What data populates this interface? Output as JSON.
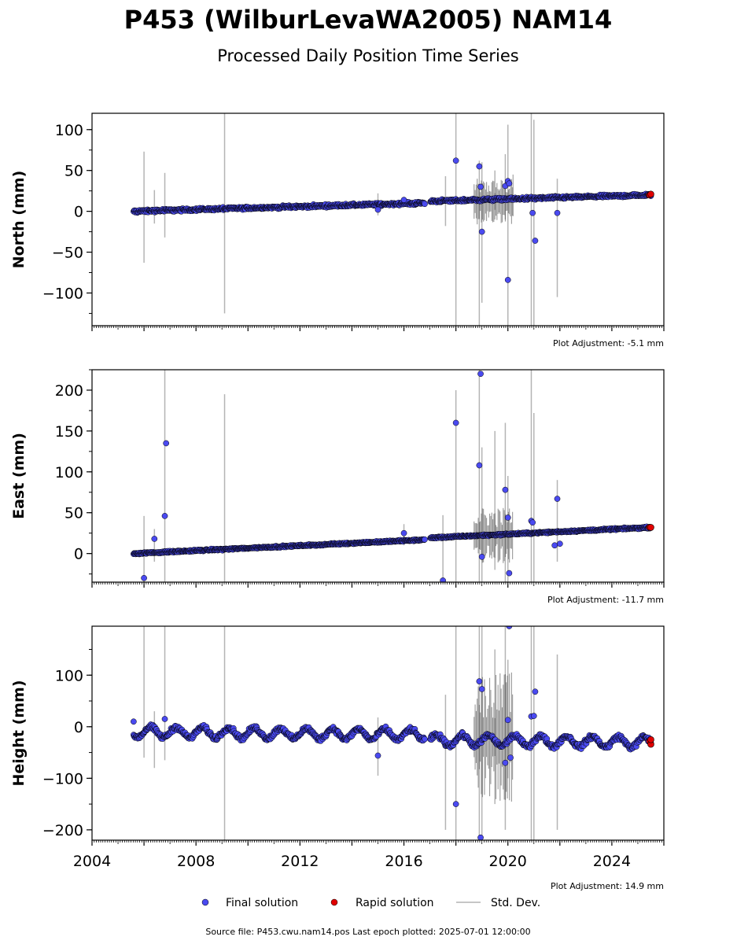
{
  "header": {
    "title": "P453 (WilburLevaWA2005) NAM14",
    "subtitle": "Processed Daily Position Time Series"
  },
  "footer": {
    "source": "Source file: P453.cwu.nam14.pos  Last epoch plotted: 2025-07-01 12:00:00"
  },
  "legend": {
    "final": "Final solution",
    "rapid": "Rapid solution",
    "std": "Std. Dev."
  },
  "colors": {
    "final_fill": "#4a4af0",
    "final_edge": "#000000",
    "rapid_fill": "#e00000",
    "std_line": "#b4b4b4"
  },
  "chart_data": [
    {
      "type": "scatter",
      "ylabel": "North (mm)",
      "adjustment": "Plot Adjustment: -5.1 mm",
      "xlim": [
        2004.0,
        2026.0
      ],
      "ylim": [
        -140,
        120
      ],
      "yticks": [
        100,
        50,
        0,
        -50,
        -100
      ],
      "ytick_labels": [
        "100",
        "50",
        "0",
        "−50",
        "−100"
      ],
      "trend": {
        "start": [
          2005.6,
          0
        ],
        "gap_start": 2016.8,
        "gap_end": 2017.0,
        "end": [
          2025.5,
          20
        ],
        "step_at_gap": 2,
        "noise": 2.5
      },
      "outliers": [
        [
          2018.0,
          62
        ],
        [
          2018.9,
          55
        ],
        [
          2018.95,
          30
        ],
        [
          2019.0,
          -25
        ],
        [
          2019.9,
          31
        ],
        [
          2020.0,
          37
        ],
        [
          2020.05,
          34
        ],
        [
          2020.0,
          -84
        ],
        [
          2020.95,
          -2
        ],
        [
          2021.05,
          -36
        ],
        [
          2021.9,
          -2
        ],
        [
          2015.0,
          2
        ],
        [
          2016.0,
          14
        ]
      ],
      "stddev_bars": [
        [
          2006.0,
          -63,
          73
        ],
        [
          2006.4,
          -15,
          26
        ],
        [
          2006.8,
          -32,
          47
        ],
        [
          2009.1,
          -125,
          120
        ],
        [
          2015.0,
          -5,
          22
        ],
        [
          2017.6,
          -18,
          43
        ],
        [
          2018.0,
          -140,
          120
        ],
        [
          2018.9,
          -140,
          62
        ],
        [
          2019.0,
          -112,
          60
        ],
        [
          2019.5,
          -10,
          50
        ],
        [
          2019.9,
          -10,
          70
        ],
        [
          2020.0,
          -140,
          106
        ],
        [
          2020.2,
          -6,
          45
        ],
        [
          2020.9,
          -140,
          120
        ],
        [
          2021.0,
          -140,
          112
        ],
        [
          2021.9,
          -105,
          40
        ]
      ],
      "rapid": [
        [
          2025.45,
          20
        ],
        [
          2025.5,
          21
        ]
      ]
    },
    {
      "type": "scatter",
      "ylabel": "East (mm)",
      "adjustment": "Plot Adjustment: -11.7 mm",
      "xlim": [
        2004.0,
        2026.0
      ],
      "ylim": [
        -35,
        225
      ],
      "yticks": [
        200,
        150,
        100,
        50,
        0
      ],
      "ytick_labels": [
        "200",
        "150",
        "100",
        "50",
        "0"
      ],
      "trend": {
        "start": [
          2005.6,
          0
        ],
        "gap_start": 2016.8,
        "gap_end": 2017.0,
        "end": [
          2025.5,
          32
        ],
        "step_at_gap": 2,
        "noise": 1.5
      },
      "outliers": [
        [
          2006.0,
          -30
        ],
        [
          2006.4,
          18
        ],
        [
          2006.8,
          46
        ],
        [
          2006.85,
          135
        ],
        [
          2016.0,
          25
        ],
        [
          2017.5,
          -33
        ],
        [
          2018.0,
          160
        ],
        [
          2018.9,
          108
        ],
        [
          2018.95,
          220
        ],
        [
          2019.0,
          -4
        ],
        [
          2019.9,
          78
        ],
        [
          2020.0,
          44
        ],
        [
          2020.05,
          -24
        ],
        [
          2020.9,
          40
        ],
        [
          2020.95,
          38
        ],
        [
          2021.8,
          10
        ],
        [
          2021.9,
          67
        ],
        [
          2022.0,
          12
        ]
      ],
      "stddev_bars": [
        [
          2006.0,
          -35,
          46
        ],
        [
          2006.4,
          -10,
          30
        ],
        [
          2006.8,
          -35,
          225
        ],
        [
          2009.1,
          -35,
          195
        ],
        [
          2016.0,
          10,
          36
        ],
        [
          2017.5,
          -35,
          47
        ],
        [
          2018.0,
          -35,
          200
        ],
        [
          2018.9,
          -35,
          225
        ],
        [
          2019.0,
          -35,
          130
        ],
        [
          2019.5,
          -20,
          150
        ],
        [
          2019.9,
          -35,
          160
        ],
        [
          2020.0,
          -35,
          95
        ],
        [
          2020.9,
          -35,
          225
        ],
        [
          2021.0,
          -35,
          172
        ],
        [
          2021.9,
          -10,
          90
        ]
      ],
      "rapid": [
        [
          2025.45,
          32
        ],
        [
          2025.5,
          32
        ]
      ]
    },
    {
      "type": "scatter",
      "ylabel": "Height (mm)",
      "adjustment": "Plot Adjustment: 14.9 mm",
      "xlim": [
        2004.0,
        2026.0
      ],
      "ylim": [
        -220,
        195
      ],
      "yticks": [
        100,
        0,
        -100,
        -200
      ],
      "ytick_labels": [
        "100",
        "0",
        "−100",
        "−200"
      ],
      "xticks": [
        2004,
        2008,
        2012,
        2016,
        2020,
        2024
      ],
      "xtick_labels": [
        "2004",
        "2008",
        "2012",
        "2016",
        "2020",
        "2024"
      ],
      "trend": {
        "start": [
          2005.6,
          -10
        ],
        "gap_start": 2016.8,
        "gap_end": 2017.0,
        "end": [
          2025.5,
          -30
        ],
        "step_at_gap": -10,
        "noise": 7,
        "seasonal": 10
      },
      "outliers": [
        [
          2005.6,
          10
        ],
        [
          2006.8,
          15
        ],
        [
          2015.0,
          -56
        ],
        [
          2018.0,
          -150
        ],
        [
          2018.9,
          88
        ],
        [
          2019.0,
          73
        ],
        [
          2018.95,
          -215
        ],
        [
          2019.9,
          -70
        ],
        [
          2020.0,
          13
        ],
        [
          2020.05,
          195
        ],
        [
          2020.1,
          -60
        ],
        [
          2020.9,
          20
        ],
        [
          2021.0,
          21
        ],
        [
          2021.05,
          68
        ]
      ],
      "stddev_bars": [
        [
          2006.0,
          -60,
          195
        ],
        [
          2006.4,
          -80,
          30
        ],
        [
          2006.8,
          -65,
          195
        ],
        [
          2009.1,
          -220,
          195
        ],
        [
          2015.0,
          -95,
          18
        ],
        [
          2017.6,
          -200,
          62
        ],
        [
          2018.0,
          -220,
          195
        ],
        [
          2018.9,
          -220,
          195
        ],
        [
          2019.0,
          -220,
          195
        ],
        [
          2019.5,
          -150,
          150
        ],
        [
          2019.9,
          -200,
          195
        ],
        [
          2020.0,
          -100,
          130
        ],
        [
          2020.9,
          -220,
          195
        ],
        [
          2021.0,
          -220,
          195
        ],
        [
          2021.9,
          -200,
          140
        ]
      ],
      "rapid": [
        [
          2025.45,
          -28
        ],
        [
          2025.5,
          -34
        ],
        [
          2025.5,
          -25
        ]
      ]
    }
  ]
}
